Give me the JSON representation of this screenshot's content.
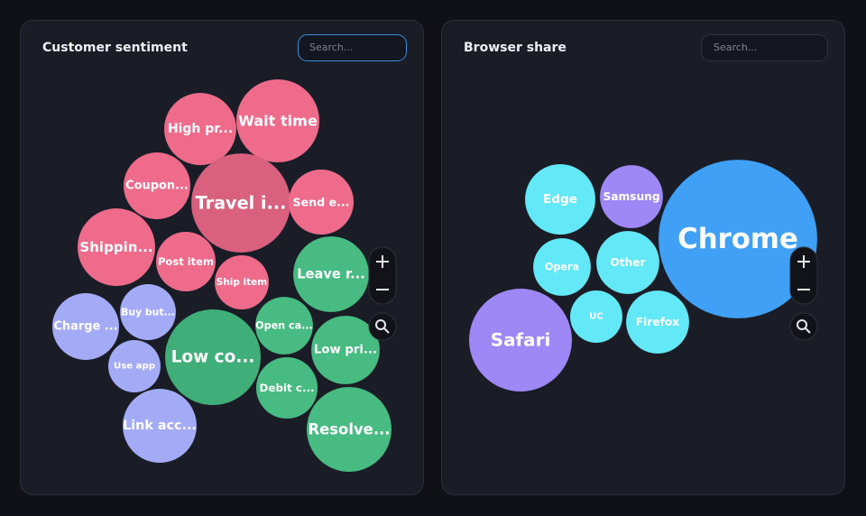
{
  "chart_data": [
    {
      "type": "packed-bubble",
      "title": "Customer sentiment",
      "search_placeholder": "Search...",
      "categories": [
        "High pr...",
        "Wait time",
        "Coupon...",
        "Travel i...",
        "Send e...",
        "Shippin...",
        "Post item",
        "Ship item",
        "Leave r...",
        "Charge ...",
        "Buy but...",
        "Use app",
        "Low co...",
        "Open ca...",
        "Low pri...",
        "Debit c...",
        "Link acc...",
        "Resolve..."
      ],
      "values": [
        160,
        212,
        137,
        302,
        130,
        185,
        109,
        90,
        176,
        137,
        96,
        84,
        281,
        102,
        144,
        116,
        168,
        221
      ],
      "colors": [
        "#ee6b8b",
        "#ee6b8b",
        "#ee6b8b",
        "#d9607f",
        "#ee6b8b",
        "#ee6b8b",
        "#ee6b8b",
        "#ee6b8b",
        "#47bb82",
        "#a4abf6",
        "#a4abf6",
        "#a4abf6",
        "#3fae78",
        "#47bb82",
        "#47bb82",
        "#47bb82",
        "#a4abf6",
        "#47bb82"
      ]
    },
    {
      "type": "packed-bubble",
      "title": "Browser share",
      "search_placeholder": "Search...",
      "categories": [
        "Edge",
        "Samsung",
        "Chrome",
        "Opera",
        "Other",
        "UC",
        "Firefox",
        "Safari"
      ],
      "values": [
        152,
        122,
        774,
        102,
        122,
        84,
        122,
        325
      ],
      "colors": [
        "#62e8f6",
        "#9d88f5",
        "#3fa0f6",
        "#62e8f6",
        "#62e8f6",
        "#62e8f6",
        "#62e8f6",
        "#9d88f5"
      ]
    }
  ]
}
